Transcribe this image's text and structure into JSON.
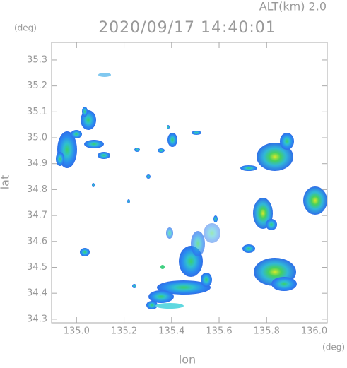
{
  "chart_data": {
    "type": "radar",
    "annotation": "ALT(km) 2.0",
    "title": "2020/09/17 14:40:01",
    "x_label": "lon",
    "x_unit": "(deg)",
    "y_label": "lat",
    "y_unit": "(deg)",
    "xlim": [
      134.895,
      136.055
    ],
    "ylim": [
      34.286,
      35.368
    ],
    "xticks": [
      {
        "value": 135,
        "label": "135.0"
      },
      135.2,
      135.4,
      135.6,
      135.8,
      {
        "value": 136,
        "label": "136.0"
      }
    ],
    "yticks": [
      34.3,
      34.4,
      34.5,
      34.6,
      34.7,
      34.8,
      34.9,
      {
        "value": 35,
        "label": "35.0"
      },
      35.1,
      35.2,
      35.3
    ]
  }
}
